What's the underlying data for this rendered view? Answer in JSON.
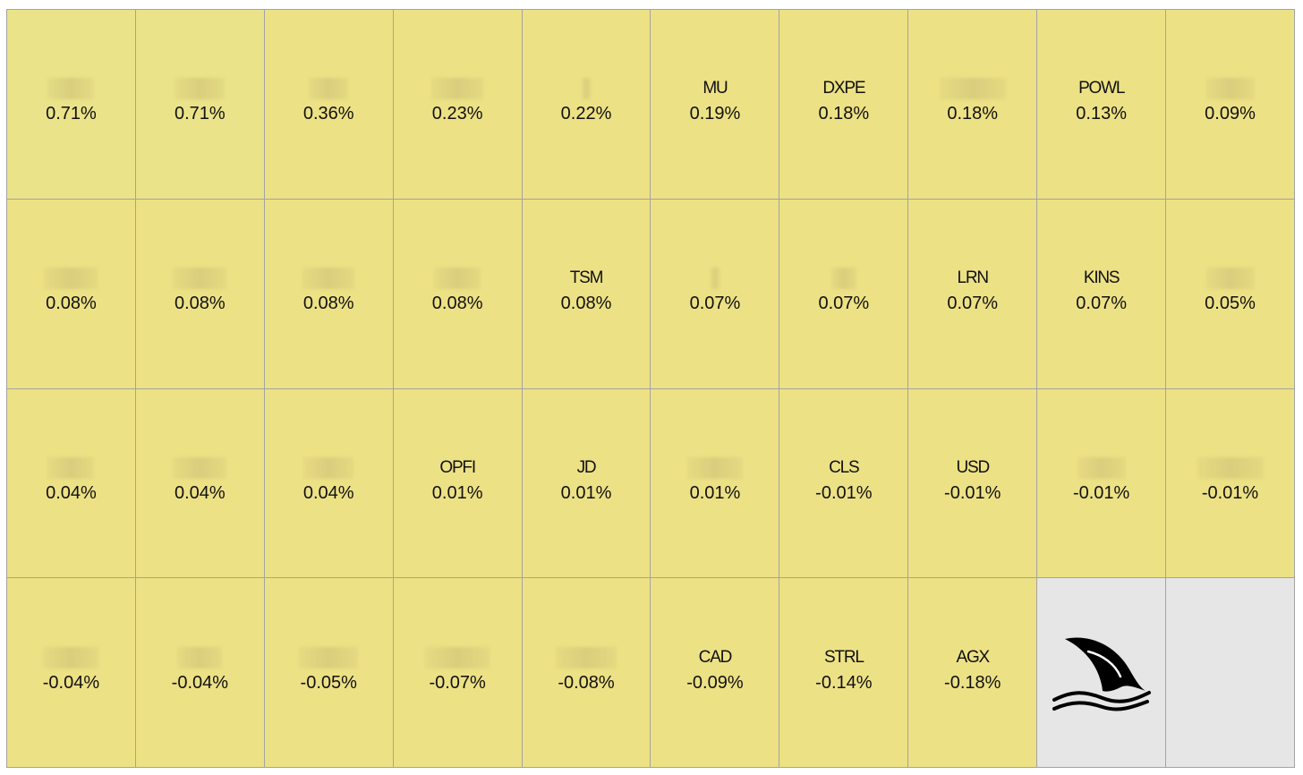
{
  "chart_data": {
    "type": "heatmap",
    "title": "",
    "colors": {
      "tile": "#ede185",
      "tile_strong": "#ebe389",
      "empty_tile": "#e6e6e6",
      "gridline": "#a3a3a3",
      "blur": "#d3c77a"
    },
    "cells": [
      {
        "label": "",
        "value": "0.71%",
        "redacted": true
      },
      {
        "label": "",
        "value": "0.71%",
        "redacted": true
      },
      {
        "label": "",
        "value": "0.36%",
        "redacted": true
      },
      {
        "label": "",
        "value": "0.23%",
        "redacted": true
      },
      {
        "label": "",
        "value": "0.22%",
        "redacted": true
      },
      {
        "label": "MU",
        "value": "0.19%",
        "redacted": false
      },
      {
        "label": "DXPE",
        "value": "0.18%",
        "redacted": false
      },
      {
        "label": "",
        "value": "0.18%",
        "redacted": true
      },
      {
        "label": "POWL",
        "value": "0.13%",
        "redacted": false
      },
      {
        "label": "",
        "value": "0.09%",
        "redacted": true
      },
      {
        "label": "",
        "value": "0.08%",
        "redacted": true
      },
      {
        "label": "",
        "value": "0.08%",
        "redacted": true
      },
      {
        "label": "",
        "value": "0.08%",
        "redacted": true
      },
      {
        "label": "",
        "value": "0.08%",
        "redacted": true
      },
      {
        "label": "TSM",
        "value": "0.08%",
        "redacted": false
      },
      {
        "label": "",
        "value": "0.07%",
        "redacted": true
      },
      {
        "label": "",
        "value": "0.07%",
        "redacted": true
      },
      {
        "label": "LRN",
        "value": "0.07%",
        "redacted": false
      },
      {
        "label": "KINS",
        "value": "0.07%",
        "redacted": false
      },
      {
        "label": "",
        "value": "0.05%",
        "redacted": true
      },
      {
        "label": "",
        "value": "0.04%",
        "redacted": true
      },
      {
        "label": "",
        "value": "0.04%",
        "redacted": true
      },
      {
        "label": "",
        "value": "0.04%",
        "redacted": true
      },
      {
        "label": "OPFI",
        "value": "0.01%",
        "redacted": false
      },
      {
        "label": "JD",
        "value": "0.01%",
        "redacted": false
      },
      {
        "label": "",
        "value": "0.01%",
        "redacted": true
      },
      {
        "label": "CLS",
        "value": "-0.01%",
        "redacted": false
      },
      {
        "label": "USD",
        "value": "-0.01%",
        "redacted": false
      },
      {
        "label": "",
        "value": "-0.01%",
        "redacted": true
      },
      {
        "label": "",
        "value": "-0.01%",
        "redacted": true
      },
      {
        "label": "",
        "value": "-0.04%",
        "redacted": true
      },
      {
        "label": "",
        "value": "-0.04%",
        "redacted": true
      },
      {
        "label": "",
        "value": "-0.05%",
        "redacted": true
      },
      {
        "label": "",
        "value": "-0.07%",
        "redacted": true
      },
      {
        "label": "",
        "value": "-0.08%",
        "redacted": true
      },
      {
        "label": "CAD",
        "value": "-0.09%",
        "redacted": false
      },
      {
        "label": "STRL",
        "value": "-0.14%",
        "redacted": false
      },
      {
        "label": "AGX",
        "value": "-0.18%",
        "redacted": false
      }
    ],
    "logo_icon": "shark-fin-icon",
    "rows": 4,
    "columns": 10
  }
}
